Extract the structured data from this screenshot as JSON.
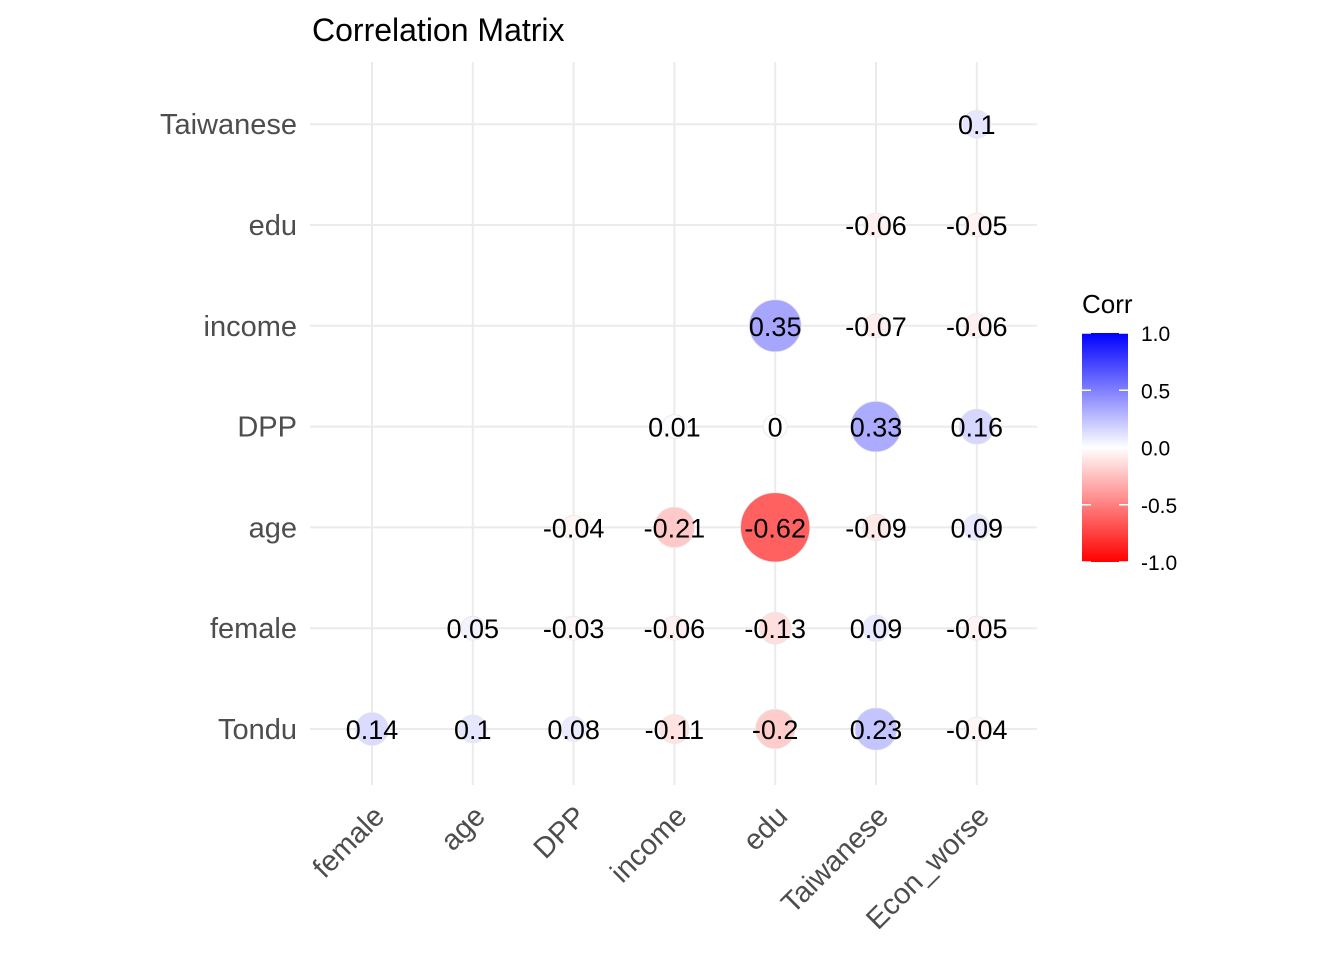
{
  "chart_data": {
    "type": "heatmap",
    "style": "circle",
    "title": "Correlation Matrix",
    "x_labels": [
      "female",
      "age",
      "DPP",
      "income",
      "edu",
      "Taiwanese",
      "Econ_worse"
    ],
    "y_labels": [
      "Tondu",
      "female",
      "age",
      "DPP",
      "income",
      "edu",
      "Taiwanese"
    ],
    "cells": [
      {
        "x": "female",
        "y": "Tondu",
        "value": 0.14,
        "label": "0.14"
      },
      {
        "x": "age",
        "y": "Tondu",
        "value": 0.1,
        "label": "0.1"
      },
      {
        "x": "DPP",
        "y": "Tondu",
        "value": 0.08,
        "label": "0.08"
      },
      {
        "x": "income",
        "y": "Tondu",
        "value": -0.11,
        "label": "-0.11"
      },
      {
        "x": "edu",
        "y": "Tondu",
        "value": -0.2,
        "label": "-0.2"
      },
      {
        "x": "Taiwanese",
        "y": "Tondu",
        "value": 0.23,
        "label": "0.23"
      },
      {
        "x": "Econ_worse",
        "y": "Tondu",
        "value": -0.04,
        "label": "-0.04"
      },
      {
        "x": "age",
        "y": "female",
        "value": 0.05,
        "label": "0.05"
      },
      {
        "x": "DPP",
        "y": "female",
        "value": -0.03,
        "label": "-0.03"
      },
      {
        "x": "income",
        "y": "female",
        "value": -0.06,
        "label": "-0.06"
      },
      {
        "x": "edu",
        "y": "female",
        "value": -0.13,
        "label": "-0.13"
      },
      {
        "x": "Taiwanese",
        "y": "female",
        "value": 0.09,
        "label": "0.09"
      },
      {
        "x": "Econ_worse",
        "y": "female",
        "value": -0.05,
        "label": "-0.05"
      },
      {
        "x": "DPP",
        "y": "age",
        "value": -0.04,
        "label": "-0.04"
      },
      {
        "x": "income",
        "y": "age",
        "value": -0.21,
        "label": "-0.21"
      },
      {
        "x": "edu",
        "y": "age",
        "value": -0.62,
        "label": "-0.62"
      },
      {
        "x": "Taiwanese",
        "y": "age",
        "value": -0.09,
        "label": "-0.09"
      },
      {
        "x": "Econ_worse",
        "y": "age",
        "value": 0.09,
        "label": "0.09"
      },
      {
        "x": "income",
        "y": "DPP",
        "value": 0.01,
        "label": "0.01"
      },
      {
        "x": "edu",
        "y": "DPP",
        "value": 0.0,
        "label": "0"
      },
      {
        "x": "Taiwanese",
        "y": "DPP",
        "value": 0.33,
        "label": "0.33"
      },
      {
        "x": "Econ_worse",
        "y": "DPP",
        "value": 0.16,
        "label": "0.16"
      },
      {
        "x": "edu",
        "y": "income",
        "value": 0.35,
        "label": "0.35"
      },
      {
        "x": "Taiwanese",
        "y": "income",
        "value": -0.07,
        "label": "-0.07"
      },
      {
        "x": "Econ_worse",
        "y": "income",
        "value": -0.06,
        "label": "-0.06"
      },
      {
        "x": "Taiwanese",
        "y": "edu",
        "value": -0.06,
        "label": "-0.06"
      },
      {
        "x": "Econ_worse",
        "y": "edu",
        "value": -0.05,
        "label": "-0.05"
      },
      {
        "x": "Econ_worse",
        "y": "Taiwanese",
        "value": 0.1,
        "label": "0.1"
      }
    ],
    "legend": {
      "title": "Corr",
      "placement": "right",
      "range": [
        -1.0,
        1.0
      ],
      "ticks": [
        {
          "value": 1.0,
          "label": "1.0"
        },
        {
          "value": 0.5,
          "label": "0.5"
        },
        {
          "value": 0.0,
          "label": "0.0"
        },
        {
          "value": -0.5,
          "label": "-0.5"
        },
        {
          "value": -1.0,
          "label": "-1.0"
        }
      ],
      "colors": {
        "low": "#FF0000",
        "mid": "#FFFFFF",
        "high": "#0000FF"
      }
    },
    "grid": true
  }
}
